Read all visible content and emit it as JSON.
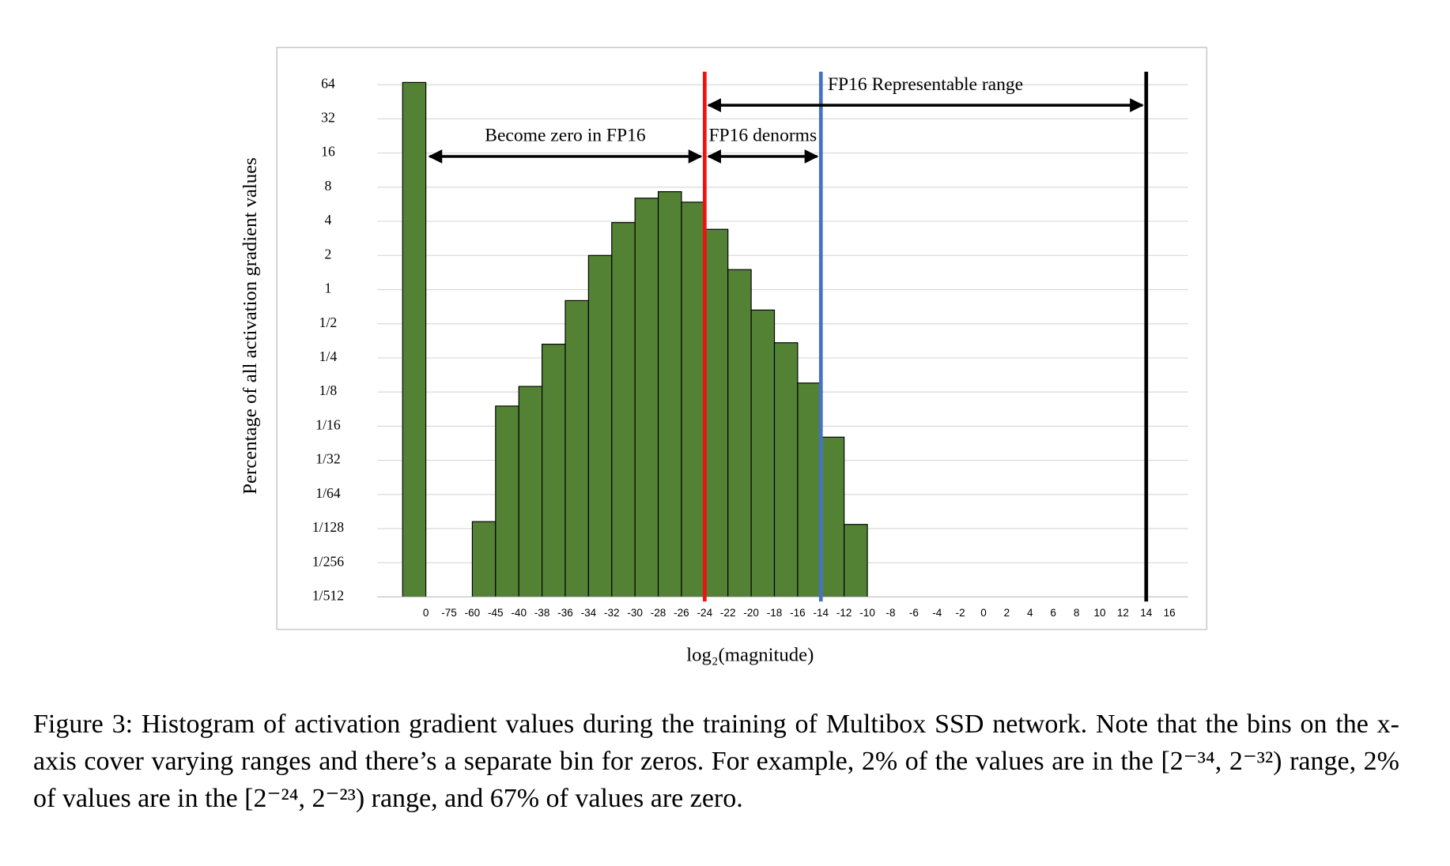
{
  "chart_data": {
    "type": "bar",
    "y_label": "Percentage of all activation gradient values",
    "x_label": "log₂(magnitude)",
    "categories": [
      "0",
      "-75",
      "-60",
      "-45",
      "-40",
      "-38",
      "-36",
      "-34",
      "-32",
      "-30",
      "-28",
      "-26",
      "-24",
      "-22",
      "-20",
      "-18",
      "-16",
      "-14",
      "-12",
      "-10",
      "-8",
      "-6",
      "-4",
      "-2",
      "0",
      "2",
      "4",
      "6",
      "8",
      "10",
      "12",
      "14",
      "16"
    ],
    "values": [
      67,
      null,
      null,
      0.009,
      0.094,
      0.14,
      0.33,
      0.8,
      2,
      3.9,
      6.4,
      7.3,
      5.9,
      3.4,
      1.5,
      0.66,
      0.34,
      0.15,
      0.05,
      0.0085,
      null,
      null,
      null,
      null,
      null,
      null,
      null,
      null,
      null,
      null,
      null,
      null,
      null
    ],
    "color": "#548235",
    "yscale": "log",
    "ylim": [
      0.001953125,
      64
    ],
    "yticks": [
      64,
      32,
      16,
      8,
      4,
      2,
      1,
      {
        "value": 0.5,
        "label": "1/2"
      },
      {
        "value": 0.25,
        "label": "1/4"
      },
      {
        "value": 0.125,
        "label": "1/8"
      },
      {
        "value": 0.0625,
        "label": "1/16"
      },
      {
        "value": 0.03125,
        "label": "1/32"
      },
      {
        "value": 0.015625,
        "label": "1/64"
      },
      {
        "value": 0.0078125,
        "label": "1/128"
      },
      {
        "value": 0.00390625,
        "label": "1/256"
      },
      {
        "value": 0.001953125,
        "label": "1/512"
      }
    ],
    "grid": true,
    "reference_lines": [
      {
        "at": "-24",
        "color": "#ee1111"
      },
      {
        "at": "-14",
        "color": "#4472c4"
      },
      {
        "at": "14",
        "color": "#000000"
      }
    ],
    "annotations": [
      {
        "text": "Become zero in FP16",
        "from": "0",
        "to": "-24"
      },
      {
        "text": "FP16 denorms",
        "from": "-24",
        "to": "-14"
      },
      {
        "text": "FP16 Representable range",
        "from": "-24",
        "to": "14"
      }
    ]
  },
  "caption": "Figure 3: Histogram of activation gradient values during the training of Multibox SSD network. Note that the bins on the x-axis cover varying ranges and there’s a separate bin for zeros. For example, 2% of the values are in the [2⁻³⁴, 2⁻³²) range, 2% of values are in the [2⁻²⁴, 2⁻²³) range, and 67% of values are zero."
}
